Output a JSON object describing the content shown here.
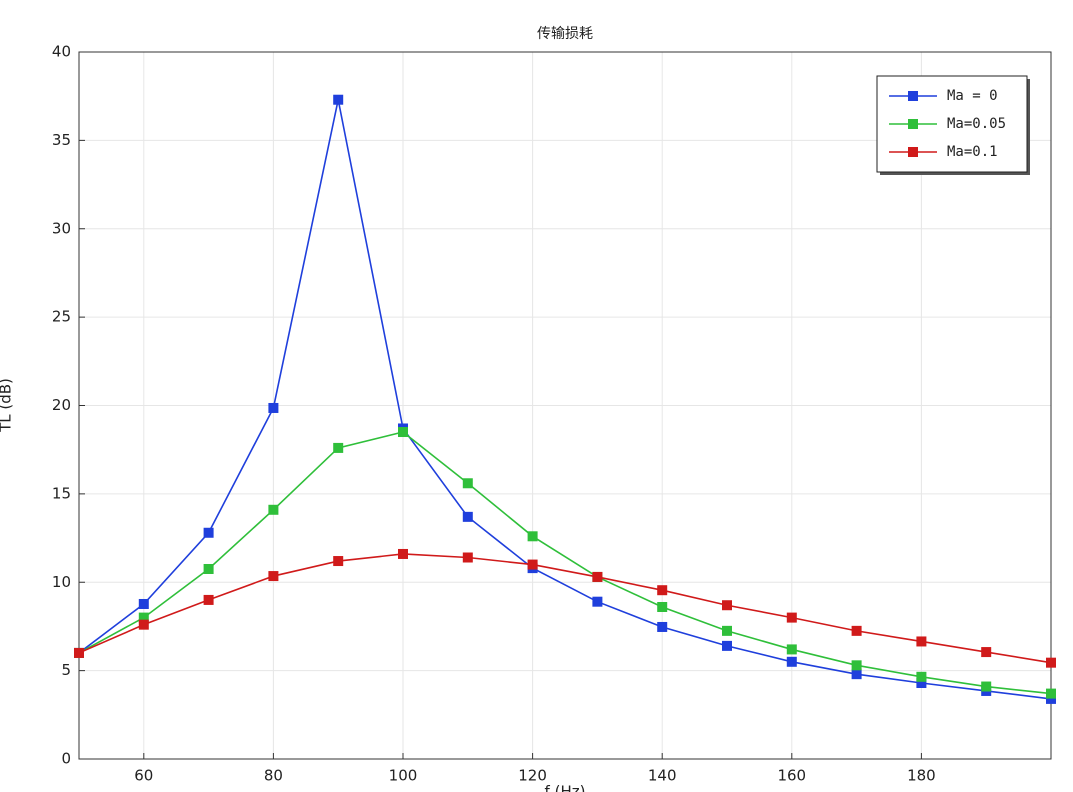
{
  "chart_data": {
    "type": "line",
    "title": "传输损耗",
    "x_label": "f (Hz)",
    "y_label": "TL (dB)",
    "x": [
      50,
      60,
      70,
      80,
      90,
      100,
      110,
      120,
      130,
      140,
      150,
      160,
      170,
      180,
      190,
      200
    ],
    "series": [
      {
        "name": "Ma = 0",
        "color": "#1f3fdc",
        "values": [
          6.0,
          8.77,
          12.8,
          19.86,
          37.3,
          18.7,
          13.7,
          10.8,
          8.9,
          7.47,
          6.4,
          5.5,
          4.8,
          4.3,
          3.85,
          3.4
        ]
      },
      {
        "name": "Ma=0.05",
        "color": "#2fbf3a",
        "values": [
          6.0,
          8.0,
          10.75,
          14.1,
          17.6,
          18.5,
          15.6,
          12.6,
          10.3,
          8.6,
          7.25,
          6.2,
          5.3,
          4.65,
          4.1,
          3.7
        ]
      },
      {
        "name": "Ma=0.1",
        "color": "#d01a1a",
        "values": [
          6.0,
          7.6,
          9.0,
          10.35,
          11.2,
          11.6,
          11.4,
          11.0,
          10.3,
          9.55,
          8.7,
          8.0,
          7.25,
          6.65,
          6.05,
          5.45
        ]
      }
    ],
    "xlim": [
      50,
      200
    ],
    "xticks": [
      60,
      80,
      100,
      120,
      140,
      160,
      180
    ],
    "ylim": [
      0,
      40
    ],
    "yticks": [
      0,
      5,
      10,
      15,
      20,
      25,
      30,
      35,
      40
    ],
    "grid": true,
    "legend": "upper right",
    "markers": true
  }
}
